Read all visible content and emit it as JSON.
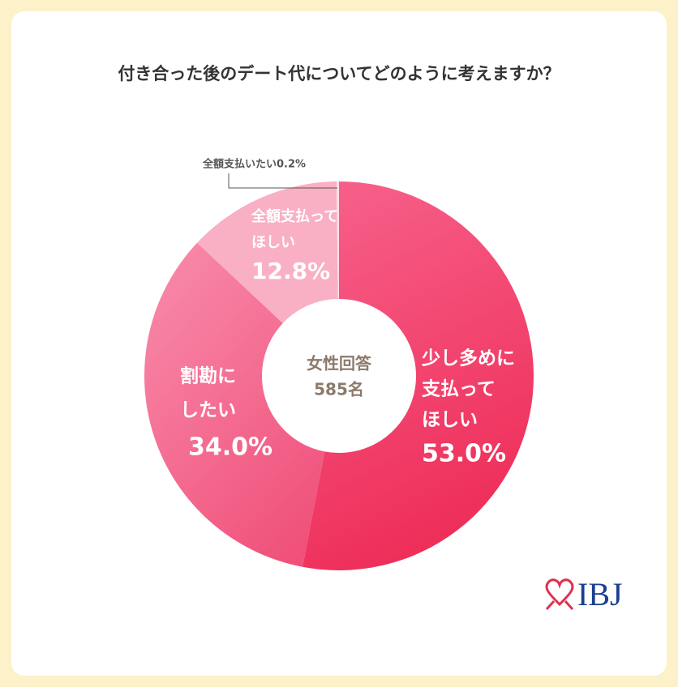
{
  "chart_data": {
    "type": "donut",
    "title": "付き合った後のデート代についてどのように考えますか？",
    "center_label": [
      "女性回答",
      "585名"
    ],
    "categories": [
      [
        "少し多めに",
        "支払って",
        "ほしい"
      ],
      [
        "割勘に",
        "したい"
      ],
      [
        "全額支払って",
        "ほしい"
      ],
      [
        "全額支払いたい"
      ]
    ],
    "values": [
      53.0,
      34.0,
      12.8,
      0.2
    ],
    "value_labels": [
      "53.0%",
      "34.0%",
      "12.8%",
      "0.2%"
    ],
    "colors": [
      "#f03a66",
      "#f56a90",
      "#f9b0c4",
      "#fde0e8"
    ]
  },
  "logo": "IBJ"
}
